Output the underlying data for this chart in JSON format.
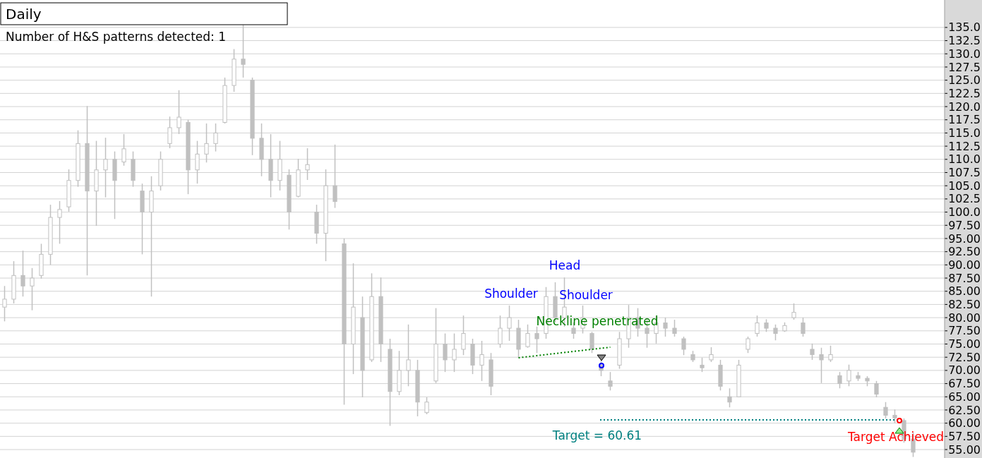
{
  "chart_data": {
    "type": "candlestick",
    "title": "Daily",
    "categories": [
      null,
      null,
      null,
      null,
      null,
      null,
      null,
      null,
      null,
      null,
      null,
      null,
      null,
      null,
      null,
      null,
      null,
      null,
      null,
      null,
      null,
      null,
      null,
      null,
      null,
      null,
      null,
      null,
      null,
      null,
      null,
      null,
      null,
      null,
      null,
      null,
      null,
      null,
      null,
      null,
      null,
      null,
      null,
      null,
      null,
      null,
      null,
      null,
      null,
      null,
      null,
      null,
      null,
      null,
      null,
      null,
      null,
      null,
      null,
      null,
      null,
      null,
      null,
      null,
      null,
      null,
      null,
      null,
      null,
      null,
      null,
      null,
      null,
      null,
      null,
      null,
      null,
      null,
      null,
      null,
      null,
      null,
      null,
      null,
      null,
      null,
      null,
      null,
      null,
      null,
      null,
      null,
      null,
      null,
      null,
      null,
      null,
      null,
      null,
      null
    ],
    "ohlc": [
      [
        82.0,
        86.0,
        79.3,
        83.5
      ],
      [
        83.5,
        90.7,
        82.7,
        88.0
      ],
      [
        88.0,
        92.7,
        84.0,
        86.0
      ],
      [
        86.0,
        89.4,
        81.4,
        87.5
      ],
      [
        88.0,
        94.0,
        87.4,
        92.0
      ],
      [
        92.0,
        101.4,
        90.0,
        99.0
      ],
      [
        99.0,
        102.1,
        94.0,
        100.5
      ],
      [
        101.0,
        108.1,
        100.1,
        106.0
      ],
      [
        106.0,
        115.5,
        104.8,
        113.0
      ],
      [
        113.0,
        120.1,
        88.0,
        104.0
      ],
      [
        104.0,
        113.5,
        97.4,
        108.0
      ],
      [
        108.0,
        114.1,
        102.8,
        110.0
      ],
      [
        110.0,
        111.5,
        98.7,
        106.0
      ],
      [
        109.5,
        114.8,
        108.8,
        112.0
      ],
      [
        110.0,
        111.5,
        104.8,
        106.0
      ],
      [
        104.0,
        105.4,
        92.0,
        100.0
      ],
      [
        100.0,
        106.8,
        84.0,
        104.0
      ],
      [
        105.0,
        111.5,
        104.1,
        110.0
      ],
      [
        113.0,
        118.1,
        112.1,
        116.0
      ],
      [
        116.0,
        123.1,
        114.8,
        118.0
      ],
      [
        117.0,
        117.5,
        103.4,
        108.0
      ],
      [
        108.0,
        113.5,
        105.4,
        111.0
      ],
      [
        111.0,
        116.8,
        109.4,
        113.0
      ],
      [
        113.0,
        116.8,
        111.5,
        115.0
      ],
      [
        117.0,
        125.5,
        116.8,
        124.0
      ],
      [
        124.0,
        130.9,
        122.8,
        129.0
      ],
      [
        129.0,
        135.5,
        125.5,
        128.0
      ],
      [
        125.0,
        125.5,
        110.8,
        114.0
      ],
      [
        114.0,
        116.8,
        106.8,
        110.0
      ],
      [
        110.0,
        114.8,
        102.8,
        106.0
      ],
      [
        106.0,
        113.5,
        104.1,
        110.0
      ],
      [
        107.0,
        108.1,
        96.7,
        100.0
      ],
      [
        103.0,
        110.1,
        102.8,
        108.0
      ],
      [
        108.0,
        112.1,
        106.1,
        109.0
      ],
      [
        100.0,
        101.4,
        94.0,
        96.0
      ],
      [
        96.0,
        108.1,
        90.7,
        105.0
      ],
      [
        105.0,
        112.8,
        100.8,
        102.0
      ],
      [
        94.0,
        95.0,
        63.5,
        75.0
      ],
      [
        75.0,
        90.3,
        69.3,
        82.0
      ],
      [
        80.0,
        84.0,
        64.9,
        70.0
      ],
      [
        72.0,
        88.4,
        71.6,
        84.0
      ],
      [
        84.0,
        87.6,
        71.6,
        75.0
      ],
      [
        74.0,
        76.0,
        59.5,
        66.0
      ],
      [
        66.0,
        73.7,
        65.3,
        70.0
      ],
      [
        70.0,
        78.7,
        67.0,
        72.0
      ],
      [
        70.0,
        72.0,
        61.3,
        64.0
      ],
      [
        62.0,
        64.9,
        61.7,
        64.0
      ],
      [
        68.0,
        81.8,
        67.6,
        75.0
      ],
      [
        75.0,
        77.0,
        69.7,
        72.0
      ],
      [
        72.0,
        77.0,
        69.7,
        74.0
      ],
      [
        74.0,
        80.4,
        72.9,
        77.0
      ],
      [
        75.0,
        76.0,
        69.3,
        71.0
      ],
      [
        71.0,
        75.6,
        68.0,
        73.0
      ],
      [
        72.0,
        73.3,
        65.3,
        67.0
      ],
      [
        75.0,
        80.4,
        74.3,
        78.0
      ],
      [
        78.0,
        82.3,
        75.6,
        80.0
      ],
      [
        78.0,
        79.6,
        72.4,
        74.0
      ],
      [
        74.5,
        78.7,
        74.3,
        77.0
      ],
      [
        77.0,
        78.3,
        73.3,
        76.0
      ],
      [
        77.0,
        85.8,
        76.0,
        84.0
      ],
      [
        84.0,
        86.7,
        79.1,
        80.0
      ],
      [
        80.0,
        87.6,
        78.3,
        82.0
      ],
      [
        78.0,
        79.1,
        76.0,
        77.0
      ],
      [
        78.0,
        82.3,
        77.0,
        80.0
      ],
      [
        77.0,
        77.3,
        73.3,
        74.0
      ],
      [
        71.0,
        72.0,
        68.9,
        70.0
      ],
      [
        68.0,
        69.7,
        66.2,
        67.0
      ],
      [
        71.0,
        77.3,
        70.3,
        76.0
      ],
      [
        76.0,
        82.4,
        74.3,
        80.0
      ],
      [
        80.0,
        81.8,
        76.4,
        78.0
      ],
      [
        78.0,
        80.0,
        74.3,
        77.0
      ],
      [
        77.0,
        80.4,
        75.1,
        79.0
      ],
      [
        79.0,
        80.0,
        76.4,
        78.0
      ],
      [
        78.0,
        79.6,
        76.4,
        77.0
      ],
      [
        76.0,
        76.4,
        72.9,
        74.0
      ],
      [
        73.0,
        73.7,
        71.6,
        72.0
      ],
      [
        71.0,
        72.4,
        69.7,
        70.5
      ],
      [
        72.0,
        74.4,
        71.6,
        73.0
      ],
      [
        71.0,
        72.0,
        66.2,
        67.0
      ],
      [
        65.0,
        66.6,
        63.0,
        64.0
      ],
      [
        65.0,
        72.0,
        64.9,
        71.0
      ],
      [
        74.0,
        76.4,
        73.3,
        76.0
      ],
      [
        77.0,
        80.4,
        76.4,
        79.0
      ],
      [
        79.0,
        79.7,
        77.3,
        78.0
      ],
      [
        78.0,
        78.7,
        75.7,
        77.0
      ],
      [
        77.5,
        79.1,
        77.3,
        78.5
      ],
      [
        80.0,
        82.7,
        79.6,
        81.0
      ],
      [
        79.0,
        80.0,
        76.4,
        77.0
      ],
      [
        74.0,
        75.1,
        72.0,
        73.0
      ],
      [
        73.0,
        74.3,
        67.6,
        72.0
      ],
      [
        72.0,
        74.7,
        71.6,
        73.0
      ],
      [
        69.0,
        69.7,
        66.6,
        67.5
      ],
      [
        68.0,
        71.1,
        67.0,
        70.0
      ],
      [
        69.0,
        69.7,
        68.0,
        68.5
      ],
      [
        68.5,
        68.9,
        67.0,
        68.0
      ],
      [
        67.5,
        68.0,
        64.9,
        65.5
      ],
      [
        63.0,
        64.0,
        60.9,
        61.5
      ],
      [
        61.5,
        62.6,
        60.0,
        61.0
      ],
      [
        60.5,
        60.9,
        56.3,
        57.0
      ],
      [
        57.0,
        58.2,
        53.6,
        54.5
      ]
    ],
    "color": "#c0c0c0",
    "series": [
      {
        "type": "line",
        "color": "#008000",
        "line_style": "dotted",
        "values": [
          null,
          null,
          null,
          null,
          null,
          null,
          null,
          null,
          null,
          null,
          null,
          null,
          null,
          null,
          null,
          null,
          null,
          null,
          null,
          null,
          null,
          null,
          null,
          null,
          null,
          null,
          null,
          null,
          null,
          null,
          null,
          null,
          null,
          null,
          null,
          null,
          null,
          null,
          null,
          null,
          null,
          null,
          null,
          null,
          null,
          null,
          null,
          null,
          null,
          null,
          null,
          null,
          null,
          null,
          null,
          null,
          72.4,
          72.6,
          72.8,
          73.0,
          73.2,
          73.4,
          73.6,
          73.8,
          74.0,
          74.2,
          74.4,
          null,
          null,
          null,
          null,
          null,
          null,
          null,
          null,
          null,
          null,
          null,
          null,
          null,
          null,
          null,
          null,
          null,
          null,
          null,
          null,
          null,
          null,
          null,
          null,
          null,
          null,
          null,
          null,
          null,
          null,
          null,
          null,
          null
        ]
      }
    ],
    "ylim": [
      53.4,
      140.2
    ],
    "yticks": [
      {
        "value": 55,
        "label": "55.00"
      },
      {
        "value": 57.5,
        "label": "57.50"
      },
      {
        "value": 60,
        "label": "60.00"
      },
      {
        "value": 62.5,
        "label": "62.50"
      },
      {
        "value": 65,
        "label": "65.00"
      },
      {
        "value": 67.5,
        "label": "67.50"
      },
      {
        "value": 70,
        "label": "70.00"
      },
      {
        "value": 72.5,
        "label": "72.50"
      },
      {
        "value": 75,
        "label": "75.00"
      },
      {
        "value": 77.5,
        "label": "77.50"
      },
      {
        "value": 80,
        "label": "80.00"
      },
      {
        "value": 82.5,
        "label": "82.50"
      },
      {
        "value": 85,
        "label": "85.00"
      },
      {
        "value": 87.5,
        "label": "87.50"
      },
      {
        "value": 90,
        "label": "90.00"
      },
      {
        "value": 92.5,
        "label": "92.50"
      },
      {
        "value": 95,
        "label": "95.00"
      },
      {
        "value": 97.5,
        "label": "97.50"
      },
      {
        "value": 100,
        "label": "100.0"
      },
      {
        "value": 102.5,
        "label": "102.5"
      },
      {
        "value": 105,
        "label": "105.0"
      },
      {
        "value": 107.5,
        "label": "107.5"
      },
      {
        "value": 110,
        "label": "110.0"
      },
      {
        "value": 112.5,
        "label": "112.5"
      },
      {
        "value": 115,
        "label": "115.0"
      },
      {
        "value": 117.5,
        "label": "117.5"
      },
      {
        "value": 120,
        "label": "120.0"
      },
      {
        "value": 122.5,
        "label": "122.5"
      },
      {
        "value": 125,
        "label": "125.0"
      },
      {
        "value": 127.5,
        "label": "127.5"
      },
      {
        "value": 130,
        "label": "130.0"
      },
      {
        "value": 132.5,
        "label": "132.5"
      },
      {
        "value": 135,
        "label": "135.0"
      }
    ],
    "grid": "y",
    "ref_lines": [
      {
        "axis": "y",
        "value": 60.61,
        "label": "Target = 60.61",
        "color": "#008080",
        "line_style": "dotted"
      }
    ],
    "annotations": [
      "Number of H&S patterns detected: 1",
      "Shoulder",
      "Head",
      "Shoulder",
      "Neckline penetrated",
      "Target Achieved"
    ]
  }
}
